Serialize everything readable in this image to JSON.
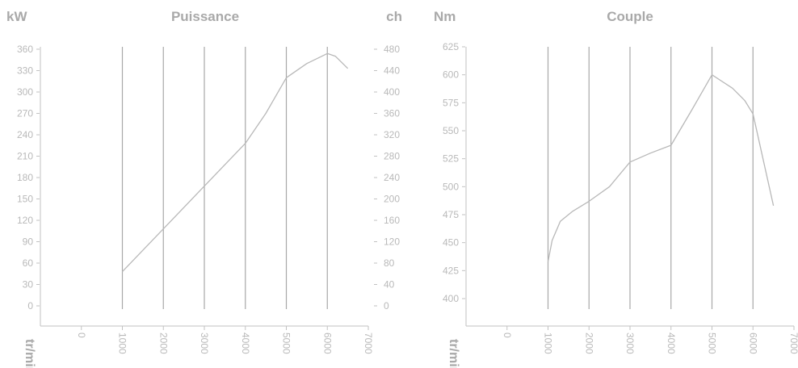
{
  "chart_data": [
    {
      "type": "line",
      "title": "Puissance",
      "ylabel": "kW",
      "ylabel_right": "ch",
      "xlabel": "tr/min",
      "xticks": [
        "0",
        "1000",
        "2000",
        "3000",
        "4000",
        "5000",
        "6000",
        "7000"
      ],
      "yticks": [
        "0",
        "30",
        "60",
        "90",
        "120",
        "150",
        "180",
        "210",
        "240",
        "270",
        "300",
        "330",
        "360"
      ],
      "yticks_right": [
        "0",
        "40",
        "80",
        "120",
        "160",
        "200",
        "240",
        "280",
        "320",
        "360",
        "400",
        "440",
        "480"
      ],
      "xlim": [
        -1000,
        7000
      ],
      "ylim": [
        0,
        360
      ],
      "grid": "vertical",
      "line_color": "#b8b8b8",
      "x": [
        1000,
        2000,
        3000,
        4000,
        4500,
        5000,
        5500,
        6000,
        6200,
        6500
      ],
      "y": [
        48,
        108,
        168,
        228,
        270,
        320,
        340,
        354,
        350,
        333
      ]
    },
    {
      "type": "line",
      "title": "Couple",
      "ylabel": "Nm",
      "xlabel": "tr/min",
      "xticks": [
        "0",
        "1000",
        "2000",
        "3000",
        "4000",
        "5000",
        "6000",
        "7000"
      ],
      "yticks": [
        "400",
        "425",
        "450",
        "475",
        "500",
        "525",
        "550",
        "575",
        "600",
        "625"
      ],
      "xlim": [
        -1000,
        7000
      ],
      "ylim": [
        400,
        625
      ],
      "grid": "vertical",
      "line_color": "#b8b8b8",
      "x": [
        1000,
        1100,
        1300,
        1600,
        2000,
        2500,
        3000,
        3500,
        4000,
        4500,
        5000,
        5500,
        5800,
        6000,
        6500
      ],
      "y": [
        433,
        452,
        469,
        478,
        487,
        500,
        522,
        530,
        537,
        568,
        600,
        588,
        577,
        565,
        483
      ]
    }
  ]
}
